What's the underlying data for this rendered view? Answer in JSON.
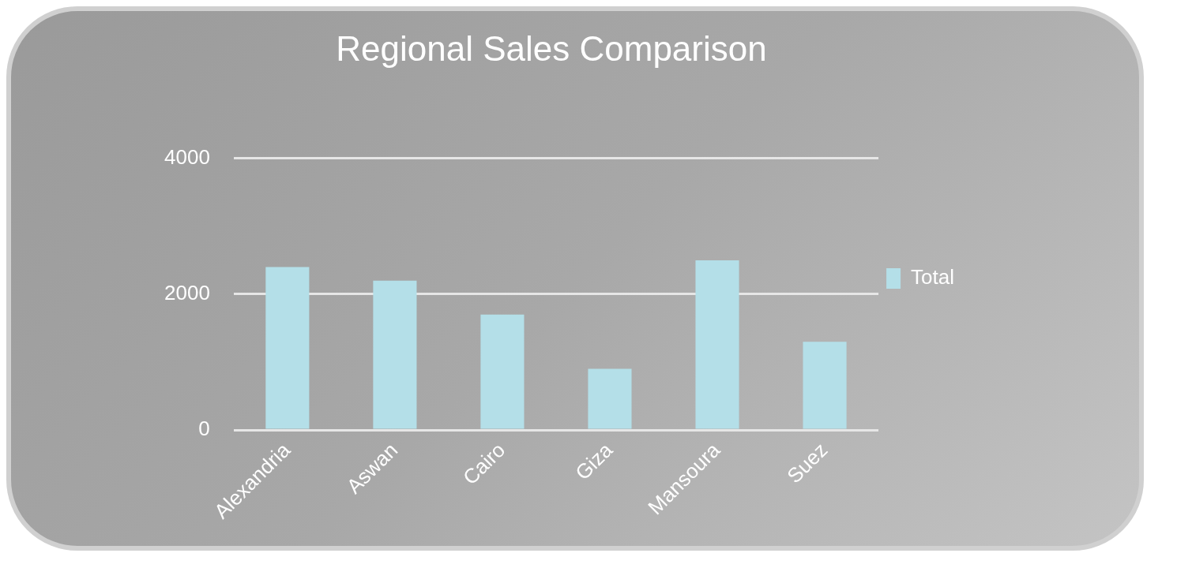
{
  "chart_data": {
    "type": "bar",
    "title": "Regional Sales Comparison",
    "categories": [
      "Alexandria",
      "Aswan",
      "Cairo",
      "Giza",
      "Mansoura",
      "Suez"
    ],
    "series": [
      {
        "name": "Total",
        "color": "#b4dfe8",
        "values": [
          2400,
          2200,
          1700,
          900,
          2500,
          1300
        ]
      }
    ],
    "ylim": [
      0,
      4000
    ],
    "yticks": [
      0,
      2000,
      4000
    ],
    "grid": "y",
    "legend": "right"
  }
}
